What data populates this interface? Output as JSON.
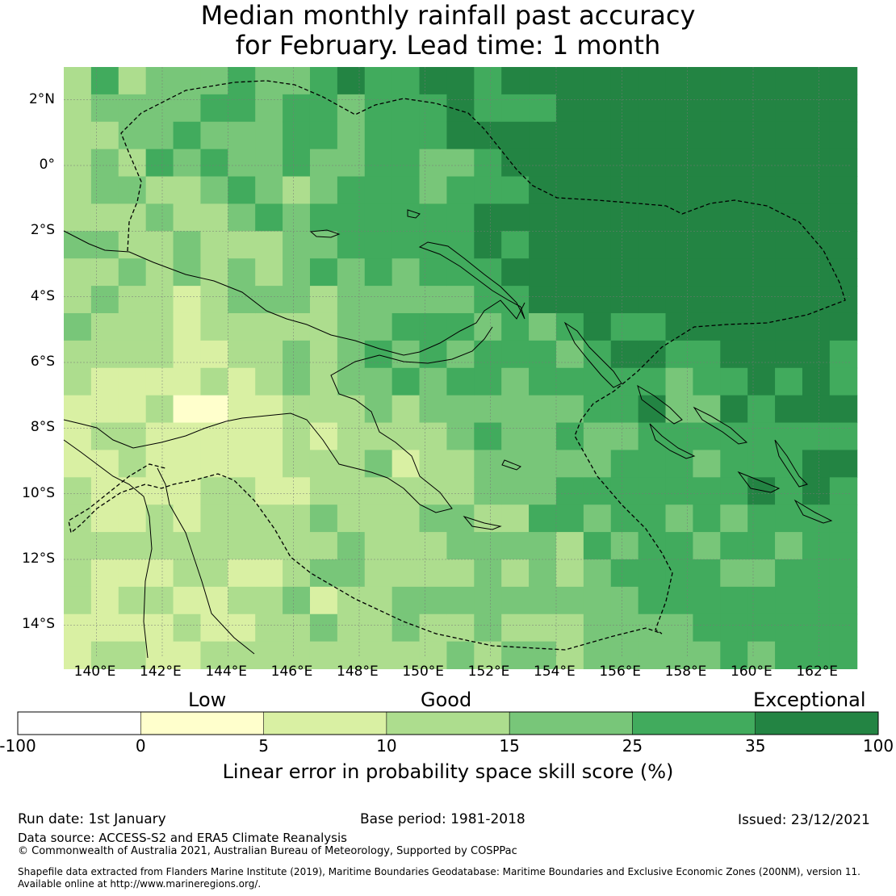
{
  "title": {
    "line1": "Median monthly rainfall past accuracy",
    "line2": "for February. Lead time: 1 month"
  },
  "map": {
    "lon_range": [
      139,
      163
    ],
    "lat_range": [
      -15,
      3
    ],
    "lon_ticks": [
      "140°E",
      "142°E",
      "144°E",
      "146°E",
      "148°E",
      "150°E",
      "152°E",
      "154°E",
      "156°E",
      "158°E",
      "160°E",
      "162°E"
    ],
    "lat_ticks": [
      "2°N",
      "0°",
      "2°S",
      "4°S",
      "6°S",
      "8°S",
      "10°S",
      "12°S",
      "14°S"
    ],
    "colors": {
      "below_0": "#ffffff",
      "0_5": "#ffffcc",
      "5_10": "#d9f0a3",
      "10_15": "#addd8e",
      "15_25": "#78c679",
      "25_35": "#41ab5d",
      "35_100": "#238443"
    },
    "layers": [
      "skill score grid",
      "coastlines",
      "EEZ boundary (dashed)"
    ]
  },
  "legend": {
    "categories": [
      "Low",
      "Good",
      "Exceptional"
    ],
    "ticks": [
      "-100",
      "0",
      "5",
      "10",
      "15",
      "25",
      "35",
      "100"
    ],
    "colors": [
      "#ffffff",
      "#ffffcc",
      "#d9f0a3",
      "#addd8e",
      "#78c679",
      "#41ab5d",
      "#238443"
    ],
    "label": "Linear error in probability space skill score (%)"
  },
  "footer": {
    "run_date": "Run date: 1st January",
    "base_period": "Base period: 1981-2018",
    "issued": "Issued: 23/12/2021",
    "data_source": "Data source: ACCESS-S2 and ERA5 Climate Reanalysis",
    "copyright": "© Commonwealth of Australia 2021, Australian Bureau of Meteorology, Supported by COSPPac",
    "shapefile_line1": "Shapefile data extracted from Flanders Marine Institute (2019), Maritime Boundaries Geodatabase: Maritime Boundaries and Exclusive Economic Zones (200NM), version 11.",
    "shapefile_line2": "Available online at http://www.marineregions.org/."
  }
}
